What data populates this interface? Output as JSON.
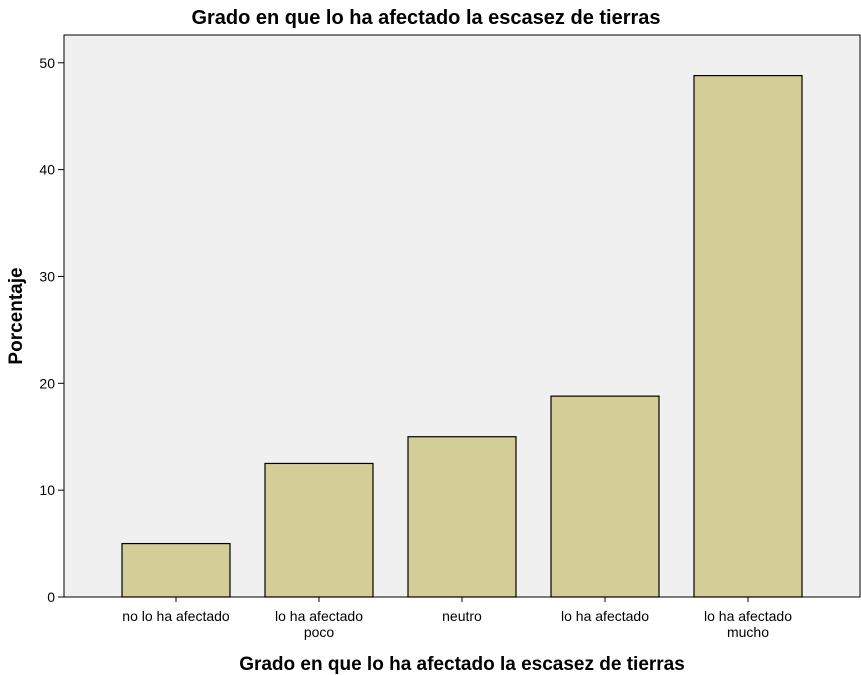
{
  "chart_data": {
    "type": "bar",
    "title": "Grado en que lo ha afectado la escasez de tierras",
    "x_label": "Grado en que lo ha afectado la escasez de tierras",
    "y_label": "Porcentaje",
    "categories": [
      "no lo ha afectado",
      "lo ha afectado poco",
      "neutro",
      "lo ha afectado",
      "lo ha afectado mucho"
    ],
    "values": [
      5.0,
      12.5,
      15.0,
      18.8,
      48.8
    ],
    "color": "#d3ce97",
    "ylim": [
      0,
      52.6
    ],
    "yticks": [
      0,
      10,
      20,
      30,
      40,
      50
    ],
    "grid": false
  }
}
